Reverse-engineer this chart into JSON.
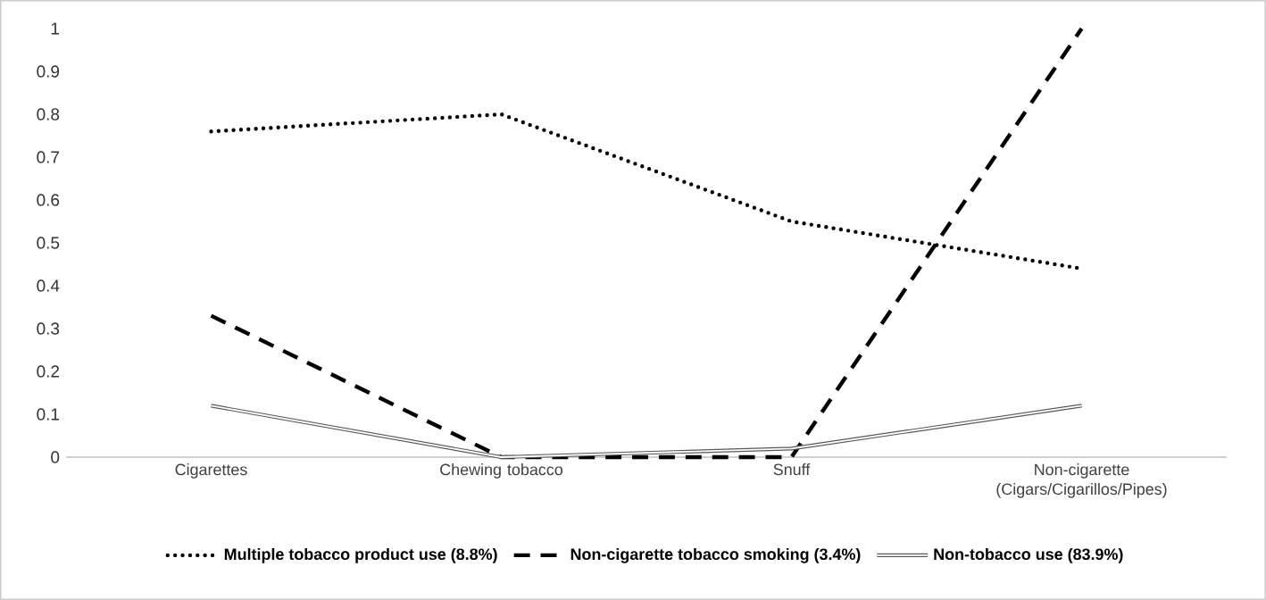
{
  "chart_data": {
    "type": "line",
    "categories": [
      "Cigarettes",
      "Chewing tobacco",
      "Snuff",
      "Non-cigarette (Cigars/Cigarillos/Pipes)"
    ],
    "series": [
      {
        "name": "Multiple tobacco product use (8.8%)",
        "color": "#000000",
        "line_style": "dotted",
        "values": [
          0.76,
          0.8,
          0.55,
          0.44
        ]
      },
      {
        "name": "Non-cigarette tobacco smoking (3.4%)",
        "color": "#000000",
        "line_style": "dashed",
        "values": [
          0.33,
          0,
          0,
          1.0
        ]
      },
      {
        "name": "Non-tobacco use (83.9%)",
        "color": "#595959",
        "line_style": "solid",
        "values": [
          0.12,
          0,
          0.02,
          0.12
        ]
      }
    ],
    "ylim": [
      0,
      1
    ],
    "yticks": [
      0,
      0.1,
      0.2,
      0.3,
      0.4,
      0.5,
      0.6,
      0.7,
      0.8,
      0.9,
      1
    ],
    "grid": false,
    "legend": "bottom",
    "marker": "none"
  }
}
